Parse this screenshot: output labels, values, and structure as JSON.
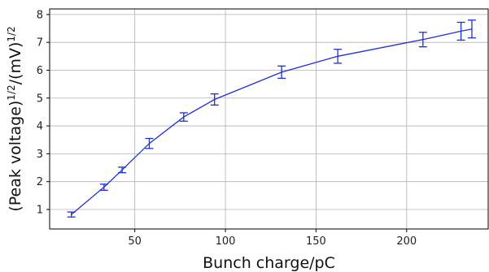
{
  "chart_data": {
    "type": "line",
    "xlabel": "Bunch charge/pC",
    "ylabel": {
      "prefix": "(Peak voltage)",
      "sup1": "1/2",
      "mid": "/(mV)",
      "sup2": "1/2"
    },
    "xlim": [
      3,
      245
    ],
    "ylim": [
      0.3,
      8.2
    ],
    "xticks": [
      50,
      100,
      150,
      200
    ],
    "yticks": [
      1,
      2,
      3,
      4,
      5,
      6,
      7,
      8
    ],
    "grid": true,
    "color": "#1f2fd6",
    "series": [
      {
        "x": [
          15,
          33,
          43,
          58,
          77,
          94,
          131,
          162,
          209,
          230,
          236
        ],
        "y": [
          0.82,
          1.8,
          2.42,
          3.37,
          4.32,
          4.95,
          5.93,
          6.5,
          7.1,
          7.4,
          7.48
        ],
        "err": [
          0.09,
          0.11,
          0.1,
          0.18,
          0.15,
          0.2,
          0.22,
          0.25,
          0.26,
          0.32,
          0.32
        ]
      }
    ]
  }
}
